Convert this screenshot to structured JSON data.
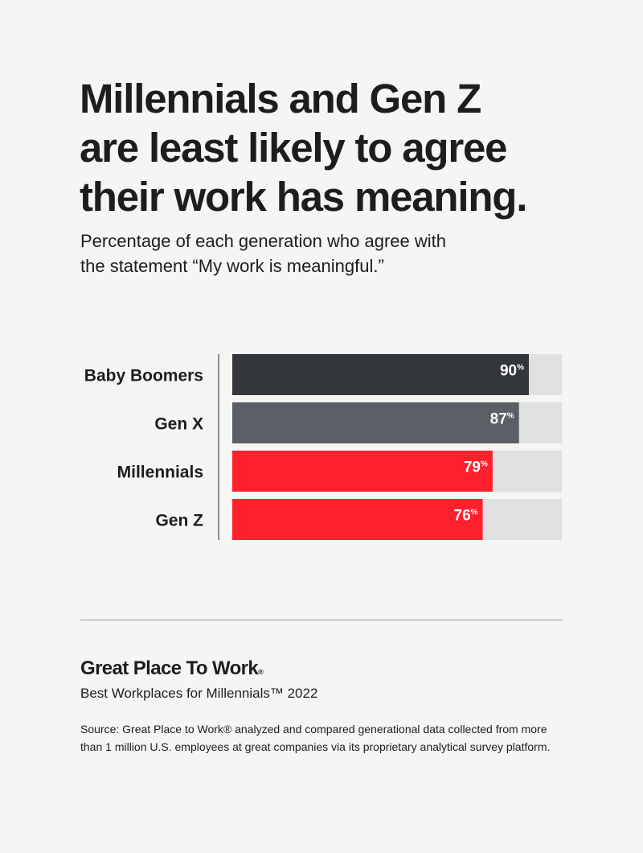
{
  "title": "Millennials and Gen Z\nare least likely to agree\ntheir work has meaning.",
  "subtitle": "Percentage of each generation who agree with\nthe statement “My work is meaningful.”",
  "chart_data": {
    "type": "bar",
    "orientation": "horizontal",
    "categories": [
      "Baby Boomers",
      "Gen X",
      "Millennials",
      "Gen Z"
    ],
    "values": [
      90,
      87,
      79,
      76
    ],
    "value_labels": [
      "90%",
      "87%",
      "79%",
      "76%"
    ],
    "xlim": [
      0,
      100
    ],
    "bar_colors": [
      "#33363b",
      "#5a5f66",
      "#ff1f2d",
      "#ff1f2d"
    ],
    "track_color": "#dfe1e1",
    "grid": false,
    "legend": "none"
  },
  "footer": {
    "org_name": "Great Place To Work",
    "org_mark": "®",
    "report_title": "Best Workplaces for Millennials™ 2022",
    "source": "Source: Great Place to Work® analyzed and compared generational data collected from more than 1 million U.S. employees at great companies via its proprietary analytical survey platform."
  }
}
